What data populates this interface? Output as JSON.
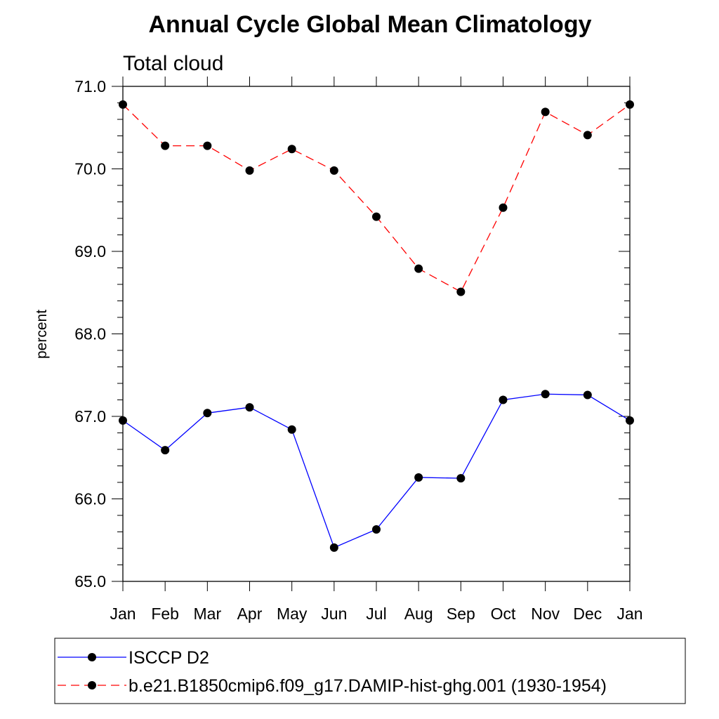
{
  "chart_data": {
    "type": "line",
    "title": "Annual Cycle Global Mean Climatology",
    "subtitle": "Total cloud",
    "xlabel": "",
    "ylabel": "percent",
    "categories": [
      "Jan",
      "Feb",
      "Mar",
      "Apr",
      "May",
      "Jun",
      "Jul",
      "Aug",
      "Sep",
      "Oct",
      "Nov",
      "Dec",
      "Jan"
    ],
    "ylim": [
      65.0,
      71.0
    ],
    "yticks": [
      "65.0",
      "66.0",
      "67.0",
      "68.0",
      "69.0",
      "70.0",
      "71.0"
    ],
    "grid": false,
    "legend_position": "bottom",
    "series": [
      {
        "name": "ISCCP D2",
        "color": "#0000ff",
        "line_style": "solid",
        "marker": "filled-circle",
        "values": [
          66.95,
          66.59,
          67.04,
          67.11,
          66.84,
          65.41,
          65.63,
          66.26,
          66.25,
          67.2,
          67.27,
          67.26,
          66.95
        ]
      },
      {
        "name": "b.e21.B1850cmip6.f09_g17.DAMIP-hist-ghg.001 (1930-1954)",
        "color": "#ff0000",
        "line_style": "dashed",
        "marker": "filled-circle",
        "values": [
          70.78,
          70.28,
          70.28,
          69.98,
          70.24,
          69.98,
          69.42,
          68.79,
          68.51,
          69.53,
          70.69,
          70.41,
          70.78
        ]
      }
    ]
  }
}
